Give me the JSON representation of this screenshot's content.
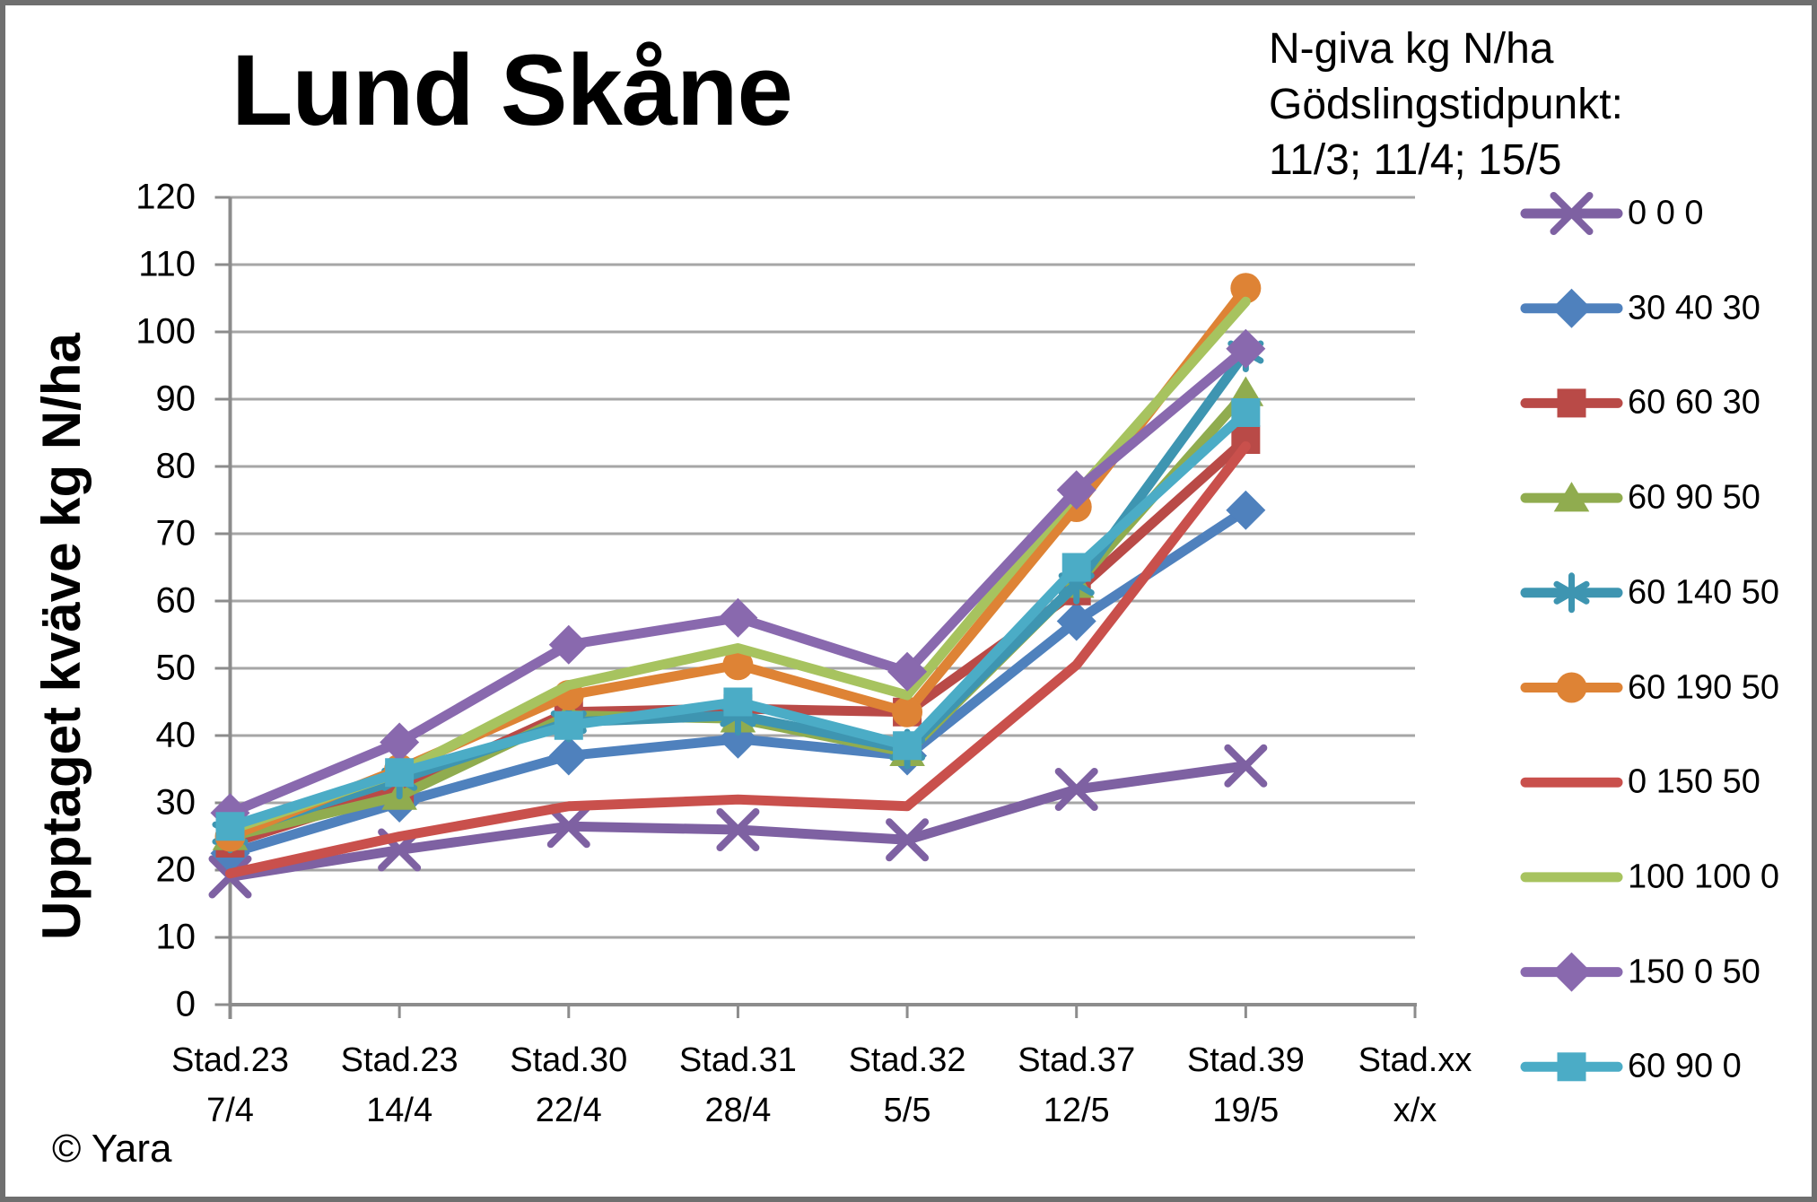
{
  "title": "Lund Skåne",
  "copyright": "© Yara",
  "legend_header_lines": [
    "N-giva kg N/ha",
    "Gödslingstidpunkt:",
    "11/3; 11/4; 15/5"
  ],
  "colors": {
    "background": "#FFFFFF",
    "border": "#6F6F6F",
    "grid": "#A6A6A6",
    "axis": "#8C8C8C",
    "text": "#000000"
  },
  "chart_data": {
    "type": "line",
    "title": "Lund Skåne",
    "ylabel": "Upptaget kväve kg N/ha",
    "ylim": [
      0,
      120
    ],
    "ytick_step": 10,
    "grid": true,
    "legend_position": "right",
    "categories": [
      {
        "stage": "Stad.23",
        "date": "7/4"
      },
      {
        "stage": "Stad.23",
        "date": "14/4"
      },
      {
        "stage": "Stad.30",
        "date": "22/4"
      },
      {
        "stage": "Stad.31",
        "date": "28/4"
      },
      {
        "stage": "Stad.32",
        "date": "5/5"
      },
      {
        "stage": "Stad.37",
        "date": "12/5"
      },
      {
        "stage": "Stad.39",
        "date": "19/5"
      },
      {
        "stage": "Stad.xx",
        "date": "x/x"
      }
    ],
    "series": [
      {
        "name": "0 0 0",
        "color": "#7E61A2",
        "marker": "x",
        "values": [
          19,
          23,
          26.5,
          26,
          24.5,
          32,
          35.5
        ]
      },
      {
        "name": "30 40 30",
        "color": "#4F81BD",
        "marker": "diamond",
        "values": [
          22.5,
          30,
          37,
          39.5,
          37,
          57,
          73.5
        ]
      },
      {
        "name": "60 60 30",
        "color": "#B94A47",
        "marker": "square",
        "values": [
          24,
          32,
          43.5,
          44,
          43.5,
          61.5,
          84
        ]
      },
      {
        "name": "60 90 50",
        "color": "#90AC4F",
        "marker": "triangle",
        "values": [
          25,
          31,
          43,
          42.5,
          37.5,
          62.5,
          91
        ]
      },
      {
        "name": "60 140 50",
        "color": "#3E95B1",
        "marker": "asterisk",
        "values": [
          25.5,
          33.5,
          42,
          43,
          38,
          62.5,
          97
        ]
      },
      {
        "name": "60 190 50",
        "color": "#DE8335",
        "marker": "circle",
        "values": [
          25,
          35,
          46,
          50.5,
          43.5,
          74,
          106.5
        ]
      },
      {
        "name": "0 150 50",
        "color": "#C9504C",
        "marker": "none",
        "values": [
          19.5,
          25,
          29.5,
          30.5,
          29.5,
          50.5,
          83
        ]
      },
      {
        "name": "100 100 0",
        "color": "#A7C35F",
        "marker": "none",
        "values": [
          26,
          34.5,
          47.5,
          53,
          46,
          76,
          104.5
        ]
      },
      {
        "name": "150 0 50",
        "color": "#8969AE",
        "marker": "diamond",
        "values": [
          28.5,
          39,
          53.5,
          57.5,
          49.5,
          76.5,
          97.5
        ]
      },
      {
        "name": "60 90 0",
        "color": "#4BACC6",
        "marker": "square",
        "values": [
          26.5,
          34.5,
          41.5,
          45,
          38.5,
          65,
          88
        ]
      }
    ]
  }
}
